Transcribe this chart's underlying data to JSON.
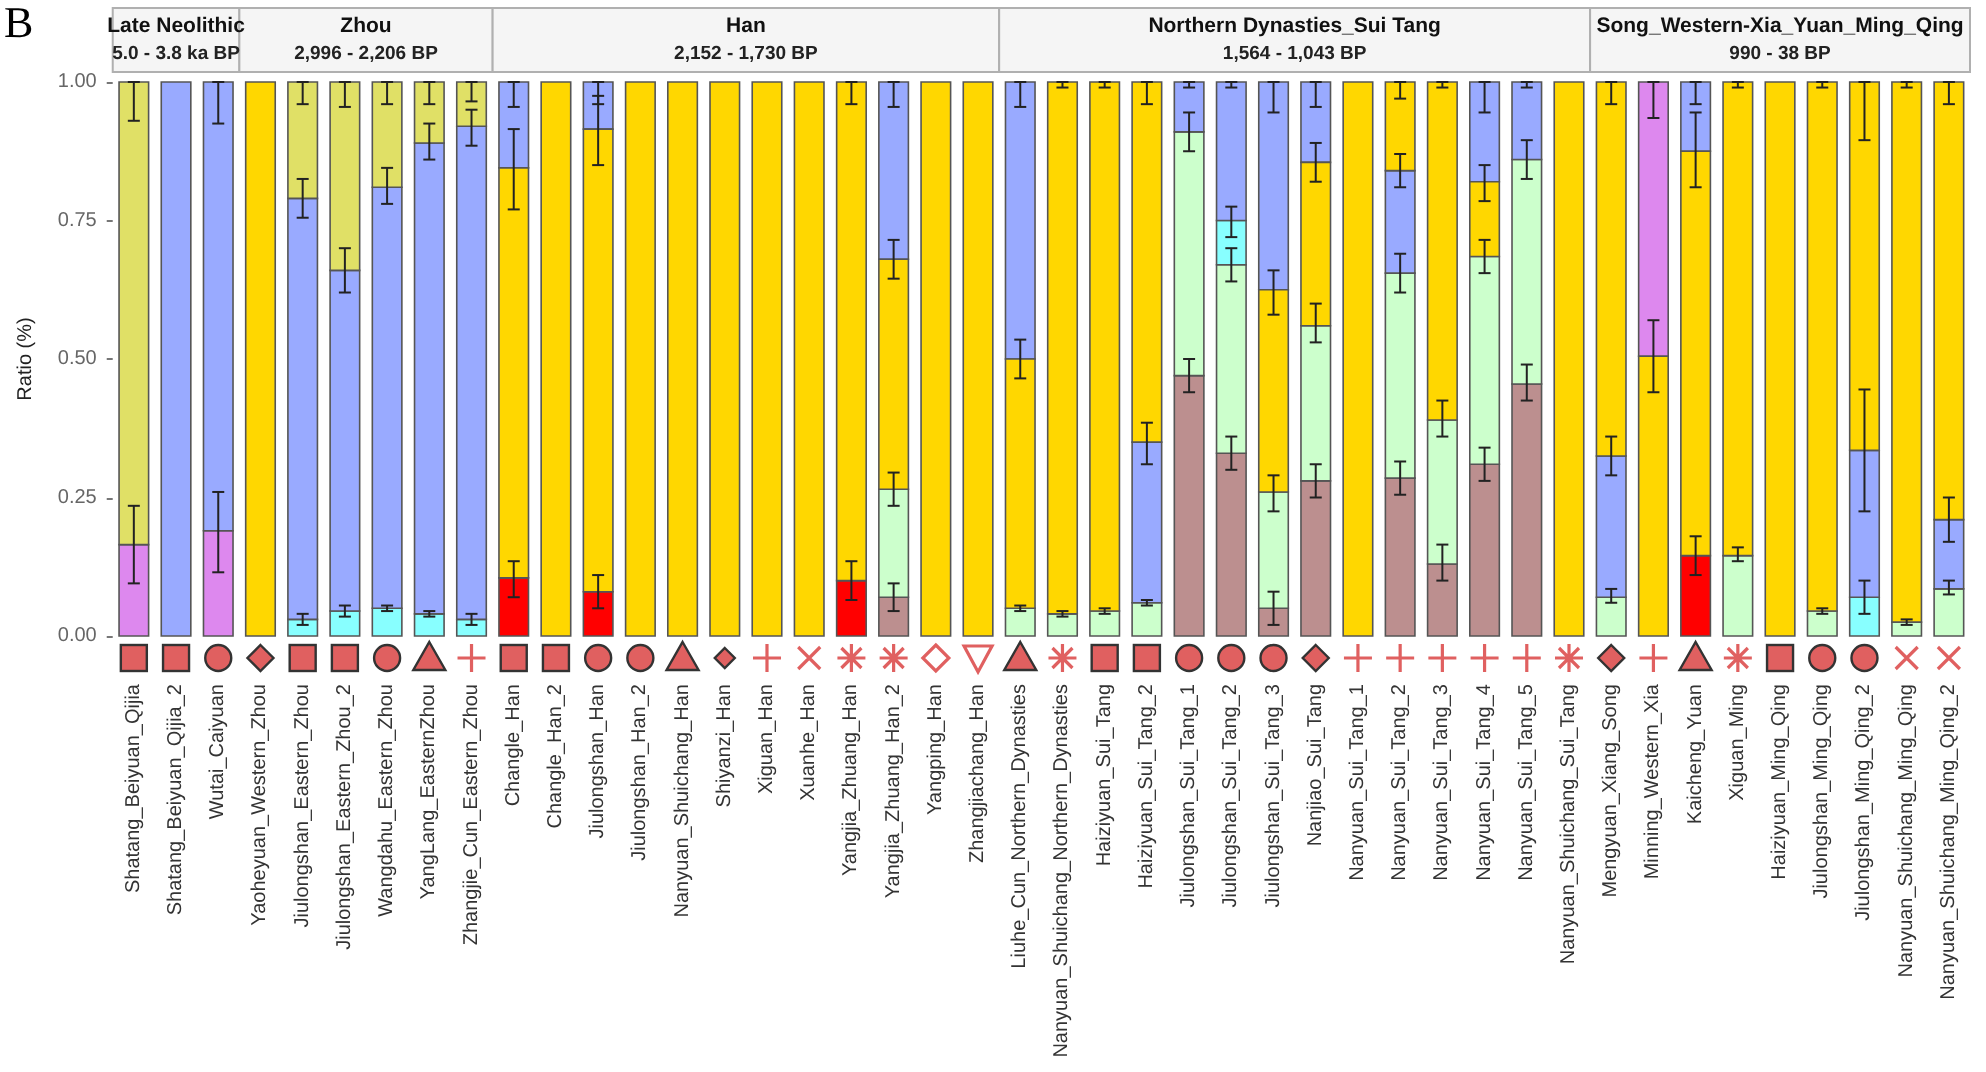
{
  "chart_data": {
    "type": "bar",
    "ylabel": "Ratio (%)",
    "ylim": [
      0,
      1
    ],
    "yticks": [
      {
        "value": 0,
        "label": "0.00"
      },
      {
        "value": 0.25,
        "label": "0.25"
      },
      {
        "value": 0.5,
        "label": "0.50"
      },
      {
        "value": 0.75,
        "label": "0.75"
      },
      {
        "value": 1,
        "label": "1.00"
      }
    ],
    "annotations": [
      "B",
      "Late Neolithic\n5.0 - 3.8 ka BP",
      "Zhou\n2,996 - 2,206 BP",
      "Han\n2,152 - 1,730 BP",
      "Northern Dynasties_Sui Tang\n1,564 - 1,043 BP",
      "Song_Western-Xia_Yuan_Ming_Qing\n990 - 38 BP"
    ],
    "categories": [
      "Shatang_Beiyuan_Qijia",
      "Shatang_Beiyuan_Qijia_2",
      "Wutai_Caiyuan",
      "Yaoheyuan_Western_Zhou",
      "Jiulongshan_Eastern_Zhou",
      "Jiulongshan_Eastern_Zhou_2",
      "Wangdahu_Eastern_Zhou",
      "YangLang_EasternZhou",
      "Zhangjie_Cun_Eastern_Zhou",
      "Changle_Han",
      "Changle_Han_2",
      "Jiulongshan_Han",
      "Jiulongshan_Han_2",
      "Nanyuan_Shuichang_Han",
      "Shiyanzi_Han",
      "Xiguan_Han",
      "Xuanhe_Han",
      "Yangjia_Zhuang_Han",
      "Yangjia_Zhuang_Han_2",
      "Yangping_Han",
      "Zhangjiachang_Han",
      "Liuhe_Cun_Northern_Dynasties",
      "Nanyuan_Shuichang_Northern_Dynasties",
      "Haiziyuan_Sui_Tang",
      "Haiziyuan_Sui_Tang_2",
      "Jiulongshan_Sui_Tang_1",
      "Jiulongshan_Sui_Tang_2",
      "Jiulongshan_Sui_Tang_3",
      "Nanjiao_Sui_Tang",
      "Nanyuan_Sui_Tang_1",
      "Nanyuan_Sui_Tang_2",
      "Nanyuan_Sui_Tang_3",
      "Nanyuan_Sui_Tang_4",
      "Nanyuan_Sui_Tang_5",
      "Nanyuan_Shuichang_Sui_Tang",
      "Mengyuan_Xiang_Song",
      "Minning_Western_Xia",
      "Kaicheng_Yuan",
      "Xiguan_Ming",
      "Haiziyuan_Ming_Qing",
      "Jiulongshan_Ming_Qing",
      "Jiulongshan_Ming_Qing_2",
      "Nanyuan_Shuichang_Ming_Qing",
      "Nanyuan_Shuichang_Ming_Qing_2"
    ],
    "series": [
      {
        "color": "#bc8f8f",
        "values": [
          null,
          null,
          null,
          null,
          null,
          null,
          null,
          null,
          null,
          null,
          null,
          null,
          null,
          null,
          null,
          null,
          null,
          null,
          0.07,
          null,
          null,
          null,
          null,
          null,
          null,
          0.47,
          0.33,
          0.05,
          0.28,
          null,
          0.285,
          0.13,
          0.31,
          0.455,
          null,
          null,
          null,
          null,
          null,
          null,
          null,
          null,
          null,
          null
        ],
        "base": [
          null,
          null,
          null,
          null,
          null,
          null,
          null,
          null,
          null,
          null,
          null,
          null,
          null,
          null,
          null,
          null,
          null,
          null,
          0,
          null,
          null,
          null,
          null,
          null,
          null,
          0,
          0,
          0,
          0,
          null,
          0,
          0,
          0,
          0,
          null,
          null,
          null,
          null,
          null,
          null,
          null,
          null,
          null,
          null
        ],
        "errors": [
          null,
          null,
          null,
          null,
          null,
          null,
          null,
          null,
          null,
          null,
          null,
          null,
          null,
          null,
          null,
          null,
          null,
          null,
          [
            0.045,
            0.095
          ],
          null,
          null,
          null,
          null,
          null,
          null,
          [
            0.44,
            0.5
          ],
          [
            0.3,
            0.36
          ],
          [
            0.02,
            0.08
          ],
          [
            0.25,
            0.31
          ],
          null,
          [
            0.255,
            0.315
          ],
          [
            0.1,
            0.165
          ],
          [
            0.28,
            0.34
          ],
          [
            0.425,
            0.49
          ],
          null,
          null,
          null,
          null,
          null,
          null,
          null,
          null,
          null,
          null
        ]
      },
      {
        "color": "#ccffcc",
        "values": [
          null,
          null,
          null,
          null,
          null,
          null,
          null,
          null,
          null,
          null,
          null,
          null,
          null,
          null,
          null,
          null,
          null,
          null,
          0.195,
          null,
          null,
          0.05,
          0.04,
          0.045,
          0.06,
          0.44,
          0.34,
          0.21,
          0.28,
          null,
          0.37,
          0.26,
          0.375,
          0.405,
          null,
          0.07,
          null,
          null,
          0.145,
          null,
          0.045,
          null,
          0.025,
          0.085
        ],
        "base": [
          null,
          null,
          null,
          null,
          null,
          null,
          null,
          null,
          null,
          null,
          null,
          null,
          null,
          null,
          null,
          null,
          null,
          null,
          0.07,
          null,
          null,
          0,
          0,
          0,
          0,
          0.47,
          0.33,
          0.05,
          0.28,
          null,
          0.285,
          0.13,
          0.31,
          0.455,
          null,
          0,
          null,
          null,
          0,
          null,
          0,
          null,
          0,
          0
        ],
        "errors": [
          null,
          null,
          null,
          null,
          null,
          null,
          null,
          null,
          null,
          null,
          null,
          null,
          null,
          null,
          null,
          null,
          null,
          null,
          [
            0.235,
            0.295
          ],
          null,
          null,
          [
            0.045,
            0.055
          ],
          [
            0.035,
            0.045
          ],
          [
            0.04,
            0.05
          ],
          [
            0.055,
            0.065
          ],
          [
            0.875,
            0.945
          ],
          [
            0.64,
            0.7
          ],
          [
            0.225,
            0.29
          ],
          [
            0.53,
            0.6
          ],
          null,
          [
            0.62,
            0.69
          ],
          [
            0.36,
            0.425
          ],
          [
            0.655,
            0.715
          ],
          [
            0.825,
            0.895
          ],
          null,
          [
            0.06,
            0.085
          ],
          null,
          null,
          [
            0.135,
            0.16
          ],
          null,
          [
            0.04,
            0.05
          ],
          null,
          [
            0.02,
            0.03
          ],
          [
            0.075,
            0.1
          ]
        ]
      },
      {
        "color": "#88ffff",
        "values": [
          null,
          null,
          null,
          null,
          0.03,
          0.045,
          0.05,
          0.04,
          0.03,
          null,
          null,
          null,
          null,
          null,
          null,
          null,
          null,
          null,
          null,
          null,
          null,
          null,
          null,
          null,
          null,
          null,
          0.08,
          null,
          null,
          null,
          null,
          null,
          null,
          null,
          null,
          null,
          null,
          null,
          null,
          null,
          null,
          0.07,
          null,
          null
        ],
        "base": [
          null,
          null,
          null,
          null,
          0,
          0,
          0,
          0,
          0,
          null,
          null,
          null,
          null,
          null,
          null,
          null,
          null,
          null,
          null,
          null,
          null,
          null,
          null,
          null,
          null,
          null,
          0.67,
          null,
          null,
          null,
          null,
          null,
          null,
          null,
          null,
          null,
          null,
          null,
          null,
          null,
          null,
          0,
          null,
          null
        ],
        "errors": [
          null,
          null,
          null,
          null,
          [
            0.02,
            0.04
          ],
          [
            0.035,
            0.055
          ],
          [
            0.045,
            0.055
          ],
          [
            0.035,
            0.045
          ],
          [
            0.02,
            0.04
          ],
          null,
          null,
          null,
          null,
          null,
          null,
          null,
          null,
          null,
          null,
          null,
          null,
          null,
          null,
          null,
          null,
          null,
          [
            0.72,
            0.775
          ],
          null,
          null,
          null,
          null,
          null,
          null,
          null,
          null,
          null,
          null,
          null,
          null,
          null,
          null,
          [
            0.04,
            0.1
          ],
          null,
          null
        ]
      },
      {
        "color": "#ff0000",
        "values": [
          null,
          null,
          null,
          null,
          null,
          null,
          null,
          null,
          null,
          0.105,
          null,
          0.08,
          null,
          null,
          null,
          null,
          null,
          0.1,
          null,
          null,
          null,
          null,
          null,
          null,
          null,
          null,
          null,
          null,
          null,
          null,
          null,
          null,
          null,
          null,
          null,
          null,
          null,
          0.145,
          null,
          null,
          null,
          null,
          null,
          null
        ],
        "base": [
          null,
          null,
          null,
          null,
          null,
          null,
          null,
          null,
          null,
          0,
          null,
          0,
          null,
          null,
          null,
          null,
          null,
          0,
          null,
          null,
          null,
          null,
          null,
          null,
          null,
          null,
          null,
          null,
          null,
          null,
          null,
          null,
          null,
          null,
          null,
          null,
          null,
          0,
          null,
          null,
          null,
          null,
          null,
          null
        ],
        "errors": [
          null,
          null,
          null,
          null,
          null,
          null,
          null,
          null,
          null,
          [
            0.07,
            0.135
          ],
          null,
          [
            0.05,
            0.11
          ],
          null,
          null,
          null,
          null,
          null,
          [
            0.065,
            0.135
          ],
          null,
          null,
          null,
          null,
          null,
          null,
          null,
          null,
          null,
          null,
          null,
          null,
          null,
          null,
          null,
          null,
          null,
          null,
          null,
          [
            0.11,
            0.18
          ],
          null,
          null,
          null,
          null,
          null,
          null
        ]
      },
      {
        "color": "#dd88ee",
        "values": [
          0.165,
          null,
          0.19,
          null,
          null,
          null,
          null,
          null,
          null,
          null,
          null,
          null,
          null,
          null,
          null,
          null,
          null,
          null,
          null,
          null,
          null,
          null,
          null,
          null,
          null,
          null,
          null,
          null,
          null,
          null,
          null,
          null,
          null,
          null,
          null,
          null,
          0.495,
          null,
          null,
          null,
          null,
          null,
          null,
          null
        ],
        "base": [
          0,
          null,
          0,
          null,
          null,
          null,
          null,
          null,
          null,
          null,
          null,
          null,
          null,
          null,
          null,
          null,
          null,
          null,
          null,
          null,
          null,
          null,
          null,
          null,
          null,
          null,
          null,
          null,
          null,
          null,
          null,
          null,
          null,
          null,
          null,
          null,
          0.505,
          null,
          null,
          null,
          null,
          null,
          null,
          null
        ],
        "errors": [
          [
            0.095,
            0.235
          ],
          null,
          [
            0.115,
            0.26
          ],
          null,
          null,
          null,
          null,
          null,
          null,
          null,
          null,
          null,
          null,
          null,
          null,
          null,
          null,
          null,
          null,
          null,
          null,
          null,
          null,
          null,
          null,
          null,
          null,
          null,
          null,
          null,
          null,
          null,
          null,
          null,
          null,
          null,
          [
            0.935,
            1
          ],
          null,
          null,
          null,
          null,
          null,
          null,
          null
        ]
      },
      {
        "color": "#99aaff",
        "values": [
          null,
          1,
          0.81,
          null,
          0.76,
          0.615,
          0.76,
          0.85,
          0.89,
          0.155,
          null,
          0.085,
          null,
          null,
          null,
          null,
          null,
          null,
          0.32,
          null,
          null,
          0.5,
          null,
          null,
          0.29,
          0.09,
          0.25,
          0.375,
          0.145,
          null,
          0.185,
          null,
          0.18,
          0.14,
          null,
          0.255,
          null,
          0.125,
          null,
          null,
          null,
          0.265,
          null,
          0.125
        ],
        "base": [
          null,
          0,
          0.19,
          null,
          0.03,
          0.045,
          0.05,
          0.04,
          0.03,
          0.845,
          null,
          0.915,
          null,
          null,
          null,
          null,
          null,
          null,
          0.68,
          null,
          null,
          0.5,
          null,
          null,
          0.06,
          0.91,
          0.75,
          0.625,
          0.855,
          null,
          0.655,
          null,
          0.82,
          0.86,
          null,
          0.07,
          null,
          0.875,
          null,
          null,
          null,
          0.07,
          null,
          0.085
        ],
        "errors": [
          null,
          null,
          [
            0.925,
            1
          ],
          null,
          [
            0.755,
            0.825
          ],
          [
            0.62,
            0.7
          ],
          [
            0.78,
            0.845
          ],
          [
            0.86,
            0.925
          ],
          [
            0.885,
            0.95
          ],
          [
            0.955,
            1
          ],
          null,
          [
            0.96,
            1
          ],
          null,
          null,
          null,
          null,
          null,
          null,
          [
            0.955,
            1
          ],
          null,
          null,
          [
            0.955,
            1
          ],
          null,
          null,
          [
            0.31,
            0.385
          ],
          [
            0.99,
            1
          ],
          [
            0.99,
            1
          ],
          [
            0.945,
            1
          ],
          [
            0.955,
            1
          ],
          null,
          [
            0.81,
            0.87
          ],
          null,
          [
            0.945,
            1
          ],
          [
            0.99,
            1
          ],
          null,
          [
            0.29,
            0.36
          ],
          null,
          [
            0.96,
            1
          ],
          null,
          null,
          null,
          [
            0.225,
            0.445
          ],
          null,
          [
            0.17,
            0.25
          ]
        ]
      },
      {
        "color": "#e0e066",
        "values": [
          0.835,
          null,
          null,
          null,
          0.21,
          0.34,
          0.19,
          0.11,
          0.08,
          null,
          null,
          null,
          null,
          null,
          null,
          null,
          null,
          null,
          null,
          null,
          null,
          null,
          null,
          null,
          null,
          null,
          null,
          null,
          null,
          null,
          null,
          null,
          null,
          null,
          null,
          null,
          null,
          null,
          null,
          null,
          null,
          null,
          null,
          null
        ],
        "base": [
          0.165,
          null,
          null,
          null,
          0.79,
          0.66,
          0.81,
          0.89,
          0.92,
          null,
          null,
          null,
          null,
          null,
          null,
          null,
          null,
          null,
          null,
          null,
          null,
          null,
          null,
          null,
          null,
          null,
          null,
          null,
          null,
          null,
          null,
          null,
          null,
          null,
          null,
          null,
          null,
          null,
          null,
          null,
          null,
          null,
          null,
          null
        ],
        "errors": [
          [
            0.93,
            1
          ],
          null,
          null,
          null,
          [
            0.96,
            1
          ],
          [
            0.955,
            1
          ],
          [
            0.96,
            1
          ],
          [
            0.96,
            1
          ],
          [
            0.965,
            1
          ],
          null,
          null,
          null,
          null,
          null,
          null,
          null,
          null,
          null,
          null,
          null,
          null,
          null,
          null,
          null,
          null,
          null,
          null,
          null,
          null,
          null,
          null,
          null,
          null,
          null,
          null,
          null,
          null,
          null,
          null,
          null,
          null,
          null,
          null,
          null
        ]
      },
      {
        "color": "#ffd700",
        "values": [
          null,
          null,
          null,
          1,
          null,
          null,
          null,
          null,
          null,
          0.74,
          1,
          0.835,
          1,
          1,
          1,
          1,
          1,
          0.9,
          0.415,
          1,
          1,
          0.45,
          0.96,
          0.955,
          0.65,
          null,
          null,
          0.365,
          0.295,
          1,
          0.16,
          0.61,
          0.135,
          null,
          1,
          0.675,
          0.505,
          0.73,
          0.855,
          1,
          0.955,
          0.665,
          0.975,
          0.79
        ],
        "base": [
          null,
          null,
          null,
          0,
          null,
          null,
          null,
          null,
          null,
          0.105,
          0,
          0.08,
          0,
          0,
          0,
          0,
          0,
          0.1,
          0.265,
          0,
          0,
          0.05,
          0.04,
          0.045,
          0.35,
          null,
          null,
          0.26,
          0.56,
          0,
          0.84,
          0.39,
          0.685,
          null,
          0,
          0.325,
          0,
          0.145,
          0.145,
          0,
          0.045,
          0.335,
          0.025,
          0.21
        ],
        "errors": [
          null,
          null,
          null,
          null,
          null,
          null,
          null,
          null,
          null,
          [
            0.77,
            0.915
          ],
          null,
          [
            0.85,
            0.975
          ],
          null,
          null,
          null,
          null,
          null,
          [
            0.96,
            1
          ],
          [
            0.645,
            0.715
          ],
          null,
          null,
          [
            0.465,
            0.535
          ],
          [
            0.99,
            1
          ],
          [
            0.99,
            1
          ],
          [
            0.96,
            1
          ],
          null,
          null,
          [
            0.58,
            0.66
          ],
          [
            0.82,
            0.89
          ],
          null,
          [
            0.97,
            1
          ],
          [
            0.99,
            1
          ],
          [
            0.785,
            0.85
          ],
          null,
          null,
          [
            0.96,
            1
          ],
          [
            0.44,
            0.57
          ],
          [
            0.81,
            0.945
          ],
          [
            0.99,
            1
          ],
          null,
          [
            0.99,
            1
          ],
          [
            0.895,
            1
          ],
          [
            0.99,
            1
          ],
          [
            0.96,
            1
          ]
        ]
      }
    ]
  }
}
